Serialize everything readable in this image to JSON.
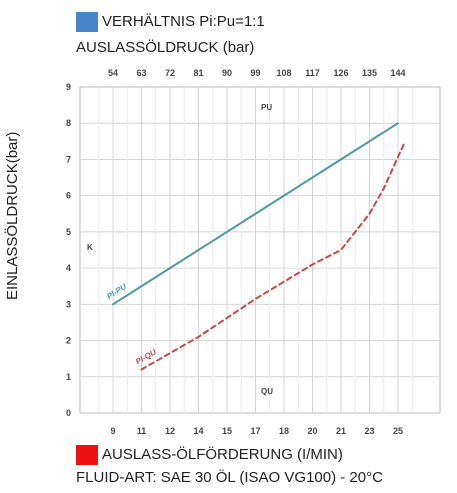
{
  "header": {
    "ratio_label": "VERHÄLTNIS Pi:Pu=1:1",
    "ratio_swatch_color": "#4a84c8",
    "top_axis_title": "AUSLASSÖLDRUCK (bar)"
  },
  "footer": {
    "flow_label": "AUSLASS-ÖLFÖRDERUNG (I/MIN)",
    "flow_swatch_color": "#ee1111",
    "fluid_label": "FLUID-ART: SAE 30 ÖL (ISAO VG100) - 20°C"
  },
  "chart_data": {
    "type": "line",
    "ylabel": "EINLASSÖLDRUCK(bar)",
    "ylim": [
      0,
      9
    ],
    "y_ticks": [
      "0",
      "1",
      "2",
      "3",
      "4",
      "5",
      "6",
      "7",
      "8",
      "9"
    ],
    "top_axis_ticks": [
      "54",
      "63",
      "72",
      "81",
      "90",
      "99",
      "108",
      "117",
      "126",
      "135",
      "144"
    ],
    "bottom_axis_ticks": [
      "9",
      "11",
      "12",
      "14",
      "15",
      "17",
      "18",
      "20",
      "21",
      "23",
      "25"
    ],
    "annotations": {
      "pu": "PU",
      "qu": "QU",
      "k": "K"
    },
    "grid": true,
    "series": [
      {
        "name": "PI-PU",
        "color": "#4a9aa5",
        "dash": false,
        "axis": "top",
        "points": [
          [
            54,
            3.0
          ],
          [
            144,
            8.0
          ]
        ]
      },
      {
        "name": "PI-QU",
        "color": "#c84848",
        "dash": true,
        "axis": "bottom",
        "points": [
          [
            11,
            1.2
          ],
          [
            14,
            2.1
          ],
          [
            17,
            3.15
          ],
          [
            20,
            4.1
          ],
          [
            21,
            4.5
          ],
          [
            23,
            5.5
          ],
          [
            24,
            6.2
          ],
          [
            25.5,
            7.5
          ]
        ]
      }
    ]
  }
}
